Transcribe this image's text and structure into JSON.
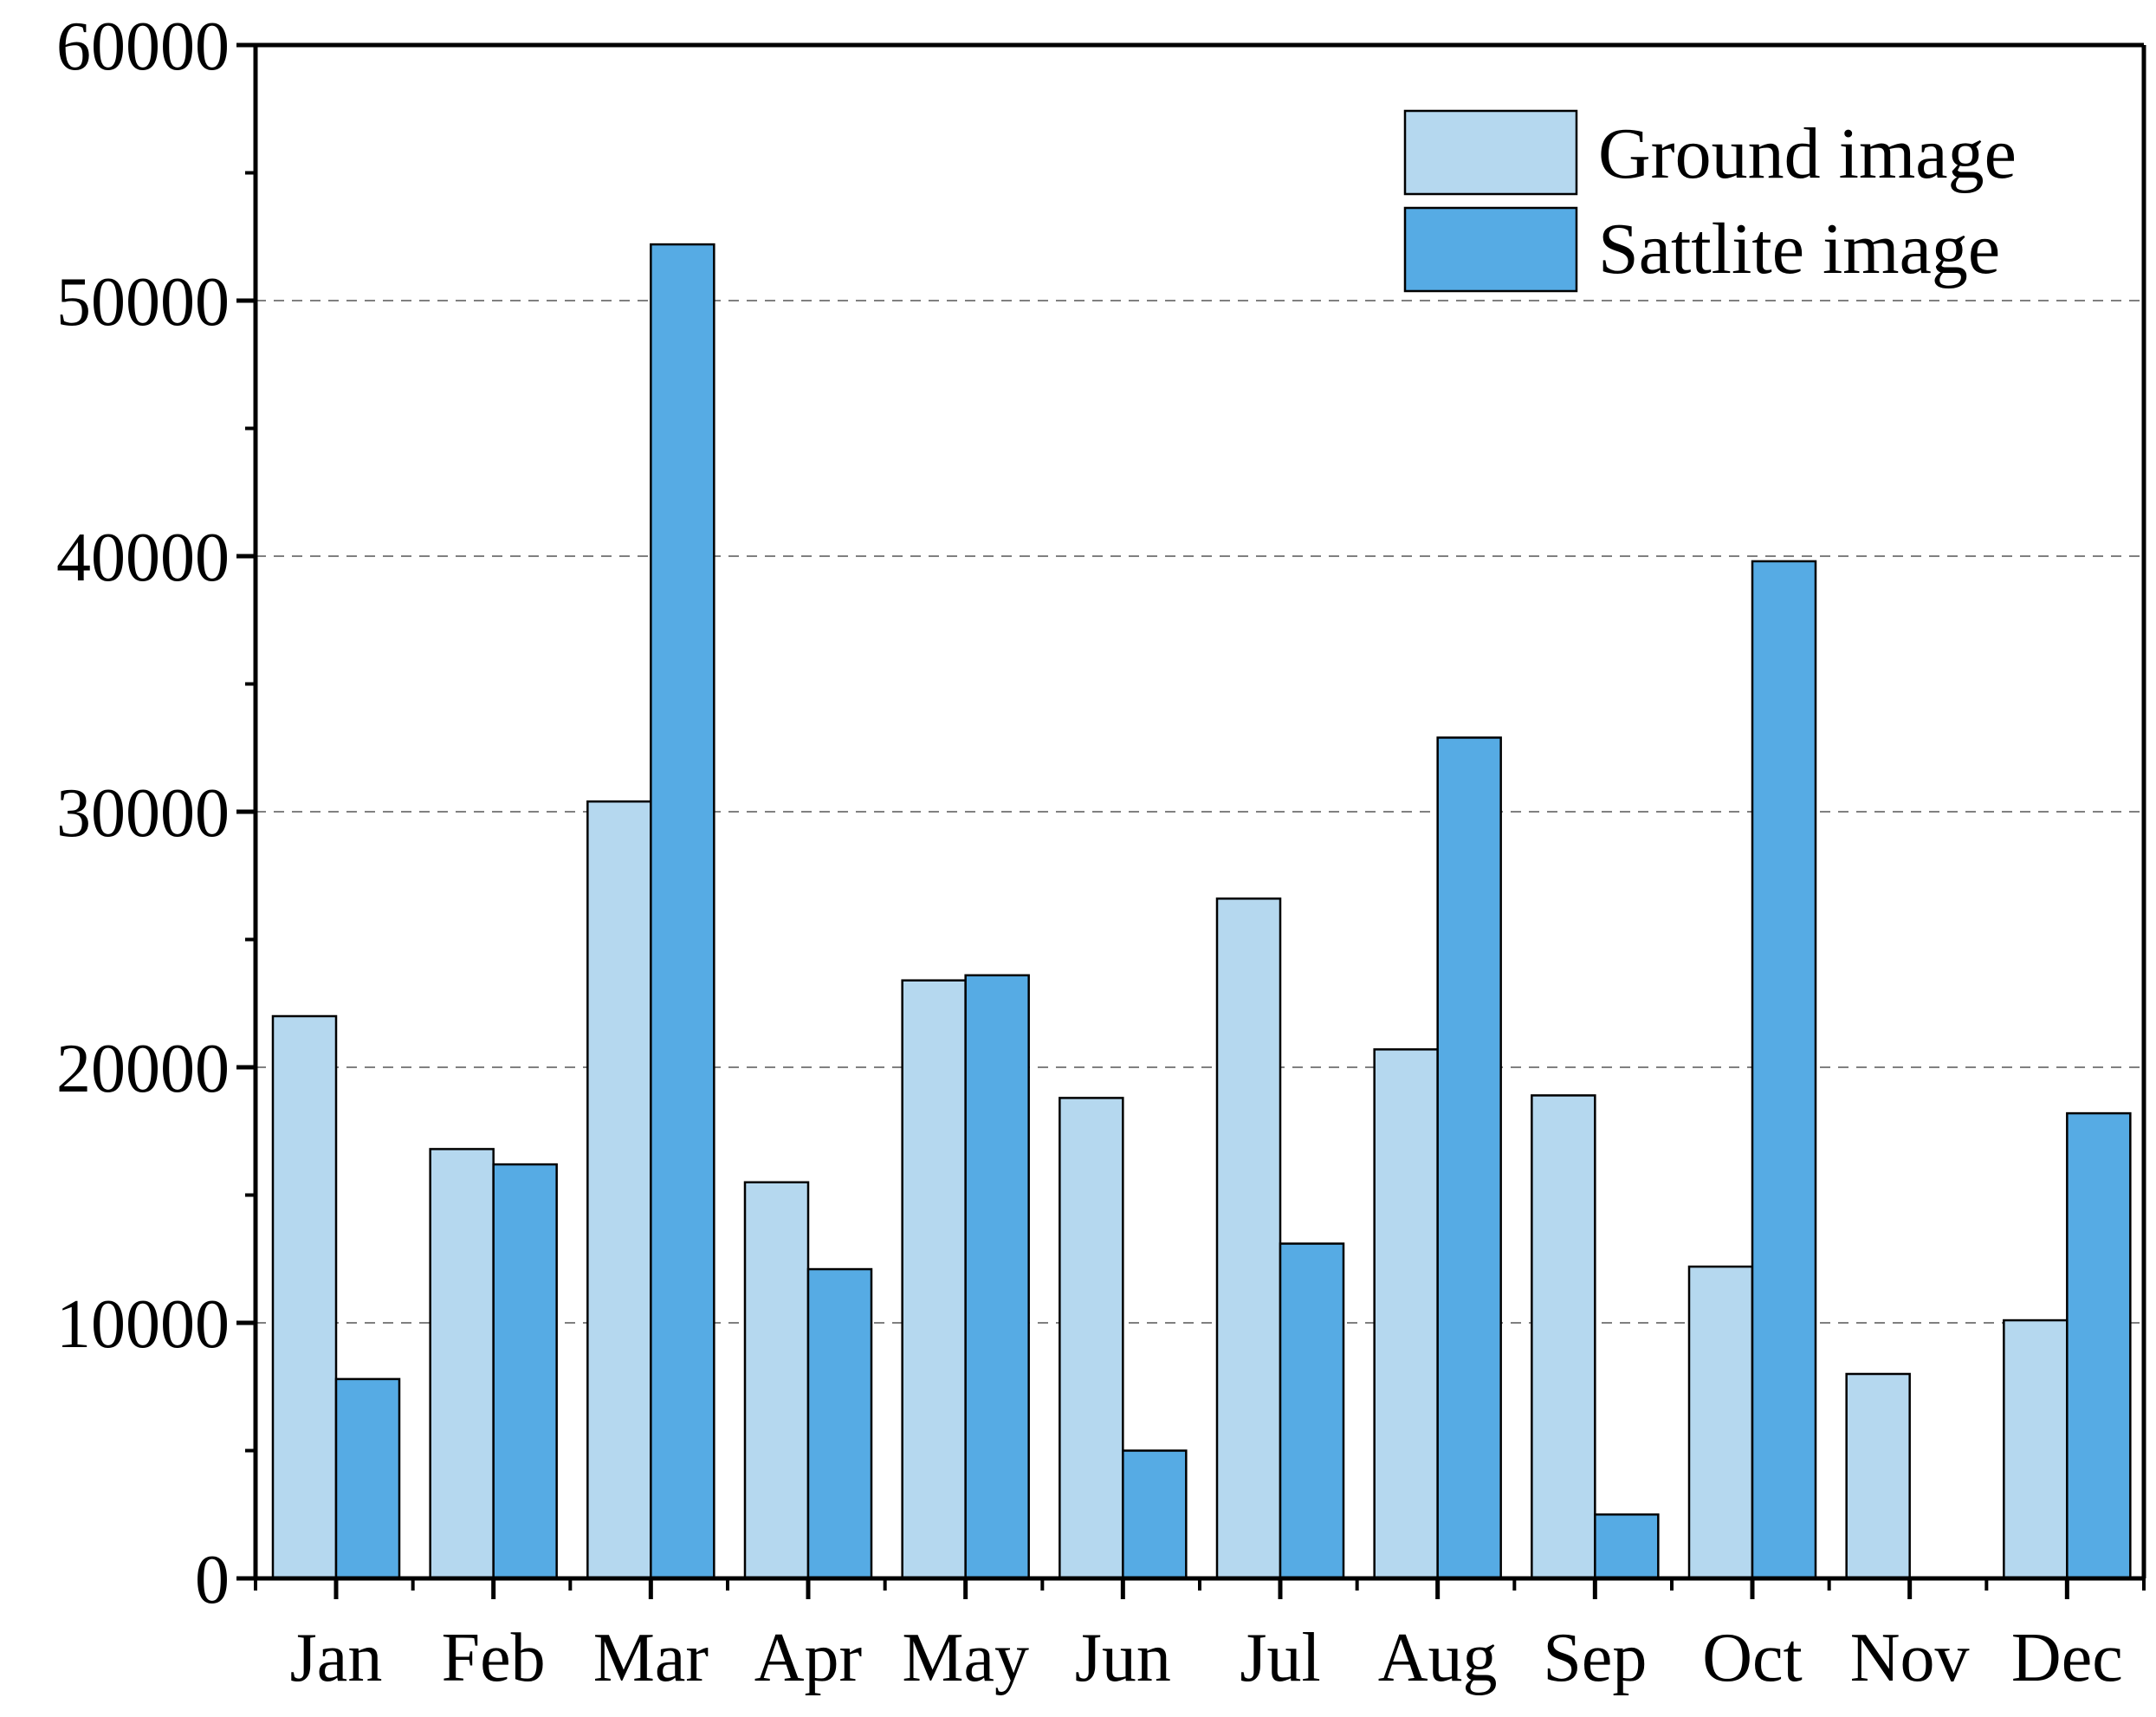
{
  "chart_data": {
    "type": "bar",
    "title": "",
    "xlabel": "",
    "ylabel": "",
    "categories": [
      "Jan",
      "Feb",
      "Mar",
      "Apr",
      "May",
      "Jun",
      "Jul",
      "Aug",
      "Sep",
      "Oct",
      "Nov",
      "Dec"
    ],
    "series": [
      {
        "name": "Ground image",
        "color": "#b5d8ef",
        "values": [
          22000,
          16800,
          30400,
          15500,
          23400,
          18800,
          26600,
          20700,
          18900,
          12200,
          8000,
          10100
        ]
      },
      {
        "name": "Sattlite image",
        "color": "#56abe4",
        "values": [
          7800,
          16200,
          52200,
          12100,
          23600,
          5000,
          13100,
          32900,
          2500,
          39800,
          0,
          18200
        ]
      }
    ],
    "ylim": [
      0,
      60000
    ],
    "yticks": [
      0,
      10000,
      20000,
      30000,
      40000,
      50000,
      60000
    ],
    "ytick_labels": [
      "0",
      "10000",
      "20000",
      "30000",
      "40000",
      "50000",
      "60000"
    ],
    "grid": "horizontal-dashed",
    "legend_position": "top-right"
  }
}
